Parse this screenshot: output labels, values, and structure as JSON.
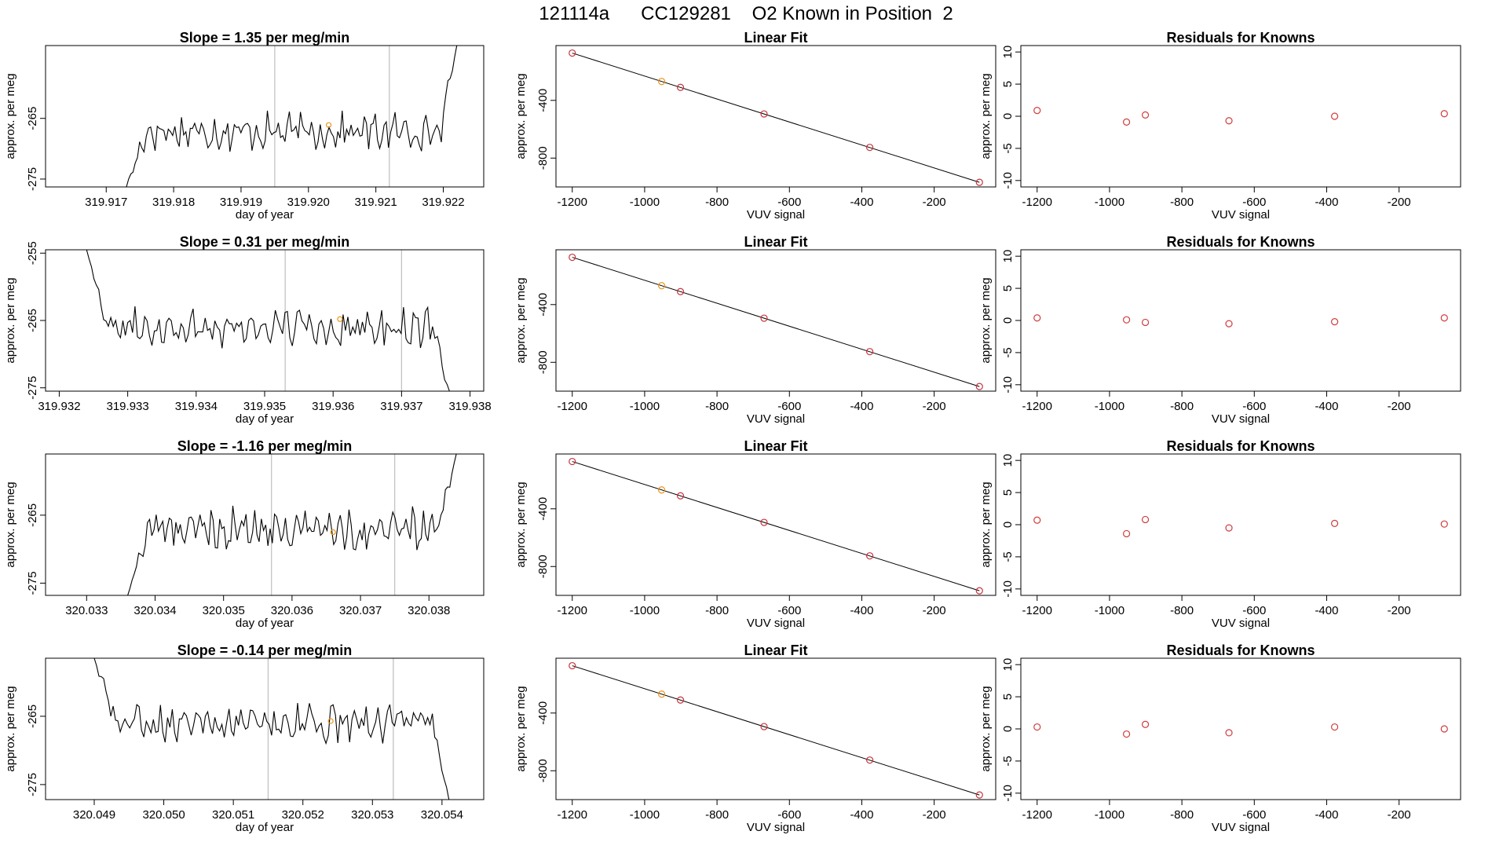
{
  "page": {
    "title": "121114a      CC129281    O2 Known in Position  2"
  },
  "colors": {
    "trace": "#000000",
    "reference_line": "#bebebe",
    "fit_point": "#c8323c",
    "highlight_point": "#e8961e",
    "residual_point": "#d03c3c"
  },
  "chart_data": [
    {
      "id": "trace-1",
      "type": "line",
      "title": "Slope =  1.35  per meg/min",
      "xlabel": "day of year",
      "ylabel": "approx. per meg",
      "xlim": [
        319.9161,
        319.9226
      ],
      "ylim": [
        -276.3,
        -253.0
      ],
      "xticks": [
        319.917,
        319.918,
        319.919,
        319.92,
        319.921,
        319.922
      ],
      "xtick_labels": [
        "319.917",
        "319.918",
        "319.919",
        "319.920",
        "319.921",
        "319.922"
      ],
      "yticks": [
        -265,
        -275
      ],
      "ytick_labels": [
        "-265",
        "-275"
      ],
      "vlines": [
        319.9195,
        319.9212
      ],
      "trace_start": 319.9173,
      "trace_end": 319.9222,
      "start_value": -276.3,
      "end_value": -253.0,
      "trace_level": -267.2,
      "trace_noise": 2.2,
      "marker": {
        "x": 319.9203,
        "y": -266.1
      }
    },
    {
      "id": "trace-2",
      "type": "line",
      "title": "Slope =  0.31  per meg/min",
      "xlabel": "day of year",
      "ylabel": "approx. per meg",
      "xlim": [
        319.9318,
        319.9382
      ],
      "ylim": [
        -275.5,
        -254.5
      ],
      "xticks": [
        319.932,
        319.933,
        319.934,
        319.935,
        319.936,
        319.937,
        319.938
      ],
      "xtick_labels": [
        "319.932",
        "319.933",
        "319.934",
        "319.935",
        "319.936",
        "319.937",
        "319.938"
      ],
      "yticks": [
        -255,
        -265,
        -275
      ],
      "ytick_labels": [
        "-255",
        "-265",
        "-275"
      ],
      "vlines": [
        319.9353,
        319.937
      ],
      "trace_start": 319.9324,
      "trace_end": 319.9377,
      "start_value": -254.5,
      "end_value": -275.5,
      "trace_level": -266.0,
      "trace_noise": 2.0,
      "marker": {
        "x": 319.9361,
        "y": -264.8
      }
    },
    {
      "id": "trace-3",
      "type": "line",
      "title": "Slope =  -1.16  per meg/min",
      "xlabel": "day of year",
      "ylabel": "approx. per meg",
      "xlim": [
        320.0324,
        320.0388
      ],
      "ylim": [
        -276.8,
        -256.0
      ],
      "xticks": [
        320.033,
        320.034,
        320.035,
        320.036,
        320.037,
        320.038
      ],
      "xtick_labels": [
        "320.033",
        "320.034",
        "320.035",
        "320.036",
        "320.037",
        "320.038"
      ],
      "yticks": [
        -265,
        -275
      ],
      "ytick_labels": [
        "-265",
        "-275"
      ],
      "vlines": [
        320.0357,
        320.0375
      ],
      "trace_start": 320.0336,
      "trace_end": 320.0384,
      "start_value": -276.8,
      "end_value": -256.0,
      "trace_level": -267.0,
      "trace_noise": 2.2,
      "marker": {
        "x": 320.0366,
        "y": -267.5
      }
    },
    {
      "id": "trace-4",
      "type": "line",
      "title": "Slope =  -0.14  per meg/min",
      "xlabel": "day of year",
      "ylabel": "approx. per meg",
      "xlim": [
        320.0483,
        320.0546
      ],
      "ylim": [
        -277.2,
        -256.5
      ],
      "xticks": [
        320.049,
        320.05,
        320.051,
        320.052,
        320.053,
        320.054
      ],
      "xtick_labels": [
        "320.049",
        "320.050",
        "320.051",
        "320.052",
        "320.053",
        "320.054"
      ],
      "yticks": [
        -265,
        -275
      ],
      "ytick_labels": [
        "-265",
        "-275"
      ],
      "vlines": [
        320.0515,
        320.0533
      ],
      "trace_start": 320.049,
      "trace_end": 320.0541,
      "start_value": -256.5,
      "end_value": -277.2,
      "trace_level": -266.0,
      "trace_noise": 1.9,
      "marker": {
        "x": 320.0524,
        "y": -265.7
      }
    },
    {
      "id": "fit-1",
      "type": "scatter",
      "title": "Linear Fit",
      "xlabel": "VUV signal",
      "ylabel": "approx. per meg",
      "xlim": [
        -1245,
        -30
      ],
      "ylim": [
        -1000,
        -20
      ],
      "xticks": [
        -1200,
        -1000,
        -800,
        -600,
        -400,
        -200
      ],
      "xtick_labels": [
        "-1200",
        "-1000",
        "-800",
        "-600",
        "-400",
        "-200"
      ],
      "yticks": [
        -400,
        -800
      ],
      "ytick_labels": [
        "-400",
        "-800"
      ],
      "line": {
        "x": [
          -1200,
          -75
        ],
        "y": [
          -72,
          -968
        ]
      },
      "points": [
        {
          "x": -1200,
          "y": -72
        },
        {
          "x": -953,
          "y": -269
        },
        {
          "x": -901,
          "y": -310
        },
        {
          "x": -670,
          "y": -494
        },
        {
          "x": -378,
          "y": -726
        },
        {
          "x": -75,
          "y": -968
        }
      ],
      "highlight_index": 1
    },
    {
      "id": "fit-2",
      "type": "scatter",
      "title": "Linear Fit",
      "xlabel": "VUV signal",
      "ylabel": "approx. per meg",
      "xlim": [
        -1245,
        -30
      ],
      "ylim": [
        -1000,
        -20
      ],
      "xticks": [
        -1200,
        -1000,
        -800,
        -600,
        -400,
        -200
      ],
      "xtick_labels": [
        "-1200",
        "-1000",
        "-800",
        "-600",
        "-400",
        "-200"
      ],
      "yticks": [
        -400,
        -800
      ],
      "ytick_labels": [
        "-400",
        "-800"
      ],
      "line": {
        "x": [
          -1200,
          -75
        ],
        "y": [
          -72,
          -968
        ]
      },
      "points": [
        {
          "x": -1200,
          "y": -72
        },
        {
          "x": -953,
          "y": -269
        },
        {
          "x": -901,
          "y": -310
        },
        {
          "x": -670,
          "y": -494
        },
        {
          "x": -378,
          "y": -726
        },
        {
          "x": -75,
          "y": -968
        }
      ],
      "highlight_index": 1
    },
    {
      "id": "fit-3",
      "type": "scatter",
      "title": "Linear Fit",
      "xlabel": "VUV signal",
      "ylabel": "approx. per meg",
      "xlim": [
        -1245,
        -30
      ],
      "ylim": [
        -1000,
        -20
      ],
      "xticks": [
        -1200,
        -1000,
        -800,
        -600,
        -400,
        -200
      ],
      "xtick_labels": [
        "-1200",
        "-1000",
        "-800",
        "-600",
        "-400",
        "-200"
      ],
      "yticks": [
        -400,
        -800
      ],
      "ytick_labels": [
        "-400",
        "-800"
      ],
      "line": {
        "x": [
          -1200,
          -75
        ],
        "y": [
          -72,
          -968
        ]
      },
      "points": [
        {
          "x": -1200,
          "y": -72
        },
        {
          "x": -953,
          "y": -269
        },
        {
          "x": -901,
          "y": -310
        },
        {
          "x": -670,
          "y": -494
        },
        {
          "x": -378,
          "y": -726
        },
        {
          "x": -75,
          "y": -968
        }
      ],
      "highlight_index": 1
    },
    {
      "id": "fit-4",
      "type": "scatter",
      "title": "Linear Fit",
      "xlabel": "VUV signal",
      "ylabel": "approx. per meg",
      "xlim": [
        -1245,
        -30
      ],
      "ylim": [
        -1000,
        -20
      ],
      "xticks": [
        -1200,
        -1000,
        -800,
        -600,
        -400,
        -200
      ],
      "xtick_labels": [
        "-1200",
        "-1000",
        "-800",
        "-600",
        "-400",
        "-200"
      ],
      "yticks": [
        -400,
        -800
      ],
      "ytick_labels": [
        "-400",
        "-800"
      ],
      "line": {
        "x": [
          -1200,
          -75
        ],
        "y": [
          -72,
          -968
        ]
      },
      "points": [
        {
          "x": -1200,
          "y": -72
        },
        {
          "x": -953,
          "y": -269
        },
        {
          "x": -901,
          "y": -310
        },
        {
          "x": -670,
          "y": -494
        },
        {
          "x": -378,
          "y": -726
        },
        {
          "x": -75,
          "y": -968
        }
      ],
      "highlight_index": 1
    },
    {
      "id": "resid-1",
      "type": "scatter",
      "title": "Residuals for Knowns",
      "xlabel": "VUV signal",
      "ylabel": "approx. per meg",
      "xlim": [
        -1245,
        -30
      ],
      "ylim": [
        -11,
        11
      ],
      "xticks": [
        -1200,
        -1000,
        -800,
        -600,
        -400,
        -200
      ],
      "xtick_labels": [
        "-1200",
        "-1000",
        "-800",
        "-600",
        "-400",
        "-200"
      ],
      "yticks": [
        10,
        5,
        0,
        -5,
        -10
      ],
      "ytick_labels": [
        "10",
        "5",
        "0",
        "-5",
        "-10"
      ],
      "points": [
        {
          "x": -1200,
          "y": 0.9
        },
        {
          "x": -953,
          "y": -0.9
        },
        {
          "x": -901,
          "y": 0.2
        },
        {
          "x": -670,
          "y": -0.7
        },
        {
          "x": -378,
          "y": 0.0
        },
        {
          "x": -75,
          "y": 0.4
        }
      ]
    },
    {
      "id": "resid-2",
      "type": "scatter",
      "title": "Residuals for Knowns",
      "xlabel": "VUV signal",
      "ylabel": "approx. per meg",
      "xlim": [
        -1245,
        -30
      ],
      "ylim": [
        -11,
        11
      ],
      "xticks": [
        -1200,
        -1000,
        -800,
        -600,
        -400,
        -200
      ],
      "xtick_labels": [
        "-1200",
        "-1000",
        "-800",
        "-600",
        "-400",
        "-200"
      ],
      "yticks": [
        10,
        5,
        0,
        -5,
        -10
      ],
      "ytick_labels": [
        "10",
        "5",
        "0",
        "-5",
        "-10"
      ],
      "points": [
        {
          "x": -1200,
          "y": 0.4
        },
        {
          "x": -953,
          "y": 0.1
        },
        {
          "x": -901,
          "y": -0.3
        },
        {
          "x": -670,
          "y": -0.5
        },
        {
          "x": -378,
          "y": -0.2
        },
        {
          "x": -75,
          "y": 0.4
        }
      ]
    },
    {
      "id": "resid-3",
      "type": "scatter",
      "title": "Residuals for Knowns",
      "xlabel": "VUV signal",
      "ylabel": "approx. per meg",
      "xlim": [
        -1245,
        -30
      ],
      "ylim": [
        -11,
        11
      ],
      "xticks": [
        -1200,
        -1000,
        -800,
        -600,
        -400,
        -200
      ],
      "xtick_labels": [
        "-1200",
        "-1000",
        "-800",
        "-600",
        "-400",
        "-200"
      ],
      "yticks": [
        10,
        5,
        0,
        -5,
        -10
      ],
      "ytick_labels": [
        "10",
        "5",
        "0",
        "-5",
        "-10"
      ],
      "points": [
        {
          "x": -1200,
          "y": 0.7
        },
        {
          "x": -953,
          "y": -1.4
        },
        {
          "x": -901,
          "y": 0.8
        },
        {
          "x": -670,
          "y": -0.5
        },
        {
          "x": -378,
          "y": 0.2
        },
        {
          "x": -75,
          "y": 0.1
        }
      ]
    },
    {
      "id": "resid-4",
      "type": "scatter",
      "title": "Residuals for Knowns",
      "xlabel": "VUV signal",
      "ylabel": "approx. per meg",
      "xlim": [
        -1245,
        -30
      ],
      "ylim": [
        -11,
        11
      ],
      "xticks": [
        -1200,
        -1000,
        -800,
        -600,
        -400,
        -200
      ],
      "xtick_labels": [
        "-1200",
        "-1000",
        "-800",
        "-600",
        "-400",
        "-200"
      ],
      "yticks": [
        10,
        5,
        0,
        -5,
        -10
      ],
      "ytick_labels": [
        "10",
        "5",
        "0",
        "-5",
        "-10"
      ],
      "points": [
        {
          "x": -1200,
          "y": 0.3
        },
        {
          "x": -953,
          "y": -0.8
        },
        {
          "x": -901,
          "y": 0.7
        },
        {
          "x": -670,
          "y": -0.6
        },
        {
          "x": -378,
          "y": 0.3
        },
        {
          "x": -75,
          "y": 0.0
        }
      ]
    }
  ]
}
